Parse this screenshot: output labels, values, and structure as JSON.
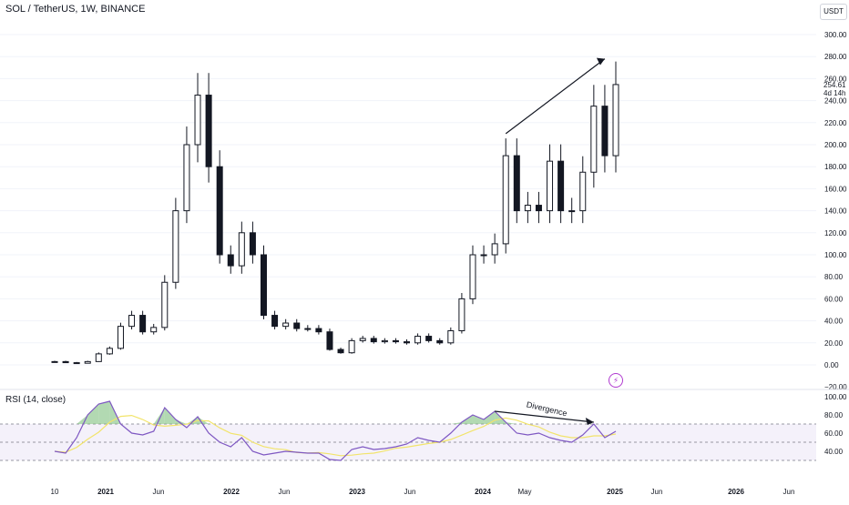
{
  "header": {
    "symbol_title": "SOL / TetherUS, 1W, BINANCE",
    "currency": "USDT",
    "last_price": "254.61",
    "countdown": "4d 14h"
  },
  "rsi_panel": {
    "title": "RSI (14, close)",
    "annotation": "Divergence"
  },
  "icons": {
    "alert": "lightning-icon"
  },
  "colors": {
    "candle": "#131722",
    "rsi_line": "#7e57c2",
    "rsi_ma": "#f2e46b",
    "rsi_band": "#ede7f6",
    "overbought_fill": "#7ec07e"
  },
  "chart_data": [
    {
      "type": "candlestick",
      "title": "SOL / TetherUS, 1W, BINANCE",
      "ylabel": "USDT",
      "ylim": [
        -20,
        300
      ],
      "y_ticks": [
        0,
        20,
        40,
        60,
        80,
        100,
        120,
        140,
        160,
        180,
        200,
        220,
        240,
        260,
        280,
        300
      ],
      "y_tick_labels": [
        "0.00",
        "20.00",
        "40.00",
        "60.00",
        "80.00",
        "100.00",
        "120.00",
        "140.00",
        "160.00",
        "180.00",
        "200.00",
        "220.00",
        "240.00",
        "260.00",
        "280.00",
        "300.00"
      ],
      "extra_tick_labels": [
        "−20.00"
      ],
      "x_tick_labels": [
        "10",
        "2021",
        "Jun",
        "2022",
        "Jun",
        "2023",
        "Jun",
        "2024",
        "May",
        "2025",
        "Jun",
        "2026",
        "Jun"
      ],
      "last_price": 254.61,
      "series": [
        {
          "x": [
            "2020-10",
            "2020-11",
            "2020-12",
            "2021-01",
            "2021-02",
            "2021-03",
            "2021-04",
            "2021-05",
            "2021-06",
            "2021-07",
            "2021-08",
            "2021-09",
            "2021-10",
            "2021-11",
            "2021-12",
            "2022-01",
            "2022-02",
            "2022-03",
            "2022-04",
            "2022-05",
            "2022-06",
            "2022-07",
            "2022-08",
            "2022-09",
            "2022-10",
            "2022-11",
            "2022-12",
            "2023-01",
            "2023-02",
            "2023-03",
            "2023-04",
            "2023-05",
            "2023-06",
            "2023-07",
            "2023-08",
            "2023-09",
            "2023-10",
            "2023-11",
            "2023-12",
            "2024-01",
            "2024-02",
            "2024-03",
            "2024-04",
            "2024-05",
            "2024-06",
            "2024-07",
            "2024-08",
            "2024-09",
            "2024-10",
            "2024-11",
            "2024-12",
            "2025-01"
          ],
          "values": [
            3,
            2,
            1.5,
            3,
            10,
            15,
            35,
            45,
            30,
            34,
            75,
            140,
            200,
            245,
            180,
            100,
            90,
            120,
            100,
            45,
            35,
            38,
            33,
            33,
            30,
            14,
            11,
            22,
            24,
            21,
            22,
            21,
            20,
            26,
            22,
            20,
            31,
            60,
            100,
            100,
            110,
            190,
            140,
            145,
            140,
            185,
            140,
            140,
            175,
            235,
            190,
            254.61
          ]
        }
      ],
      "annotations": [
        "upward trend arrow from 2024-03 high (~210) to 2025-01 high (~280)"
      ]
    },
    {
      "type": "line",
      "title": "RSI (14, close)",
      "ylim": [
        30,
        100
      ],
      "y_ticks": [
        40,
        60,
        80,
        100
      ],
      "y_tick_labels": [
        "40.00",
        "60.00",
        "80.00",
        "100.00"
      ],
      "bands": [
        30,
        50,
        70
      ],
      "series": [
        {
          "x": [
            "2020-10",
            "2020-11",
            "2020-12",
            "2021-01",
            "2021-02",
            "2021-03",
            "2021-04",
            "2021-05",
            "2021-06",
            "2021-07",
            "2021-08",
            "2021-09",
            "2021-10",
            "2021-11",
            "2021-12",
            "2022-01",
            "2022-02",
            "2022-03",
            "2022-04",
            "2022-05",
            "2022-06",
            "2022-07",
            "2022-08",
            "2022-09",
            "2022-10",
            "2022-11",
            "2022-12",
            "2023-01",
            "2023-02",
            "2023-03",
            "2023-04",
            "2023-05",
            "2023-06",
            "2023-07",
            "2023-08",
            "2023-09",
            "2023-10",
            "2023-11",
            "2023-12",
            "2024-01",
            "2024-02",
            "2024-03",
            "2024-04",
            "2024-05",
            "2024-06",
            "2024-07",
            "2024-08",
            "2024-09",
            "2024-10",
            "2024-11",
            "2024-12",
            "2025-01"
          ],
          "values": [
            40,
            38,
            55,
            80,
            92,
            95,
            70,
            60,
            58,
            62,
            88,
            75,
            66,
            78,
            60,
            50,
            45,
            55,
            40,
            36,
            38,
            40,
            39,
            38,
            38,
            31,
            30,
            42,
            45,
            42,
            43,
            45,
            48,
            55,
            52,
            50,
            60,
            72,
            80,
            75,
            84,
            72,
            60,
            58,
            60,
            55,
            52,
            50,
            58,
            70,
            55,
            62
          ]
        }
      ],
      "annotations": [
        "Divergence"
      ]
    }
  ]
}
